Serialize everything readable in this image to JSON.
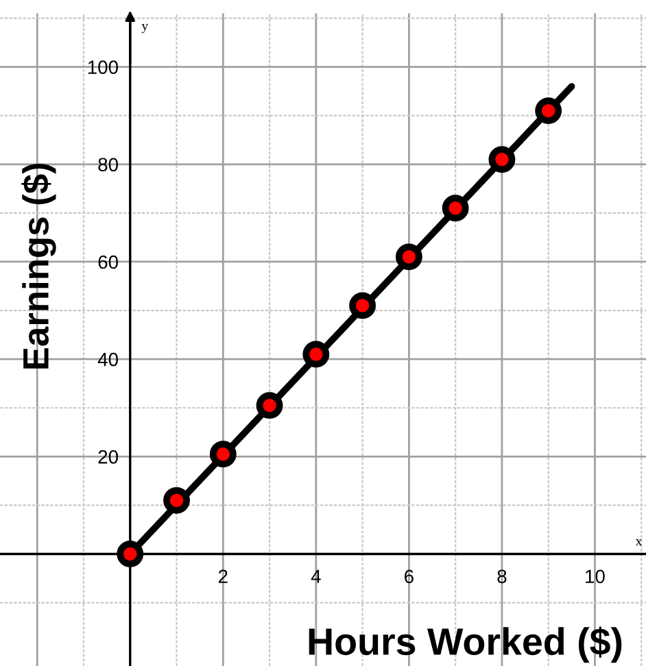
{
  "chart_data": {
    "type": "line",
    "xlabel": "Hours Worked ($)",
    "ylabel": "Earnings ($)",
    "annotations": [
      "y",
      "x"
    ],
    "series": [
      {
        "color": "#000000",
        "x": [
          0,
          9.5
        ],
        "values": [
          0,
          96
        ],
        "marker": "none"
      },
      {
        "type": "scatter",
        "color": "#ff0000",
        "x": [
          0,
          1,
          2,
          3,
          4,
          5,
          6,
          7,
          8,
          9
        ],
        "values": [
          0,
          11,
          20.5,
          30.5,
          41,
          51,
          61,
          71,
          81,
          91
        ],
        "marker": "circle"
      }
    ],
    "xlim": [
      -2.8,
      11.1
    ],
    "ylim": [
      -23,
      111
    ],
    "xticks": [
      {
        "value": -2,
        "label": null
      },
      {
        "value": 0,
        "label": null
      },
      2,
      4,
      6,
      8,
      10
    ],
    "yticks": [
      {
        "value": 0,
        "label": null
      },
      20,
      40,
      60,
      80,
      100
    ],
    "grid": true
  }
}
